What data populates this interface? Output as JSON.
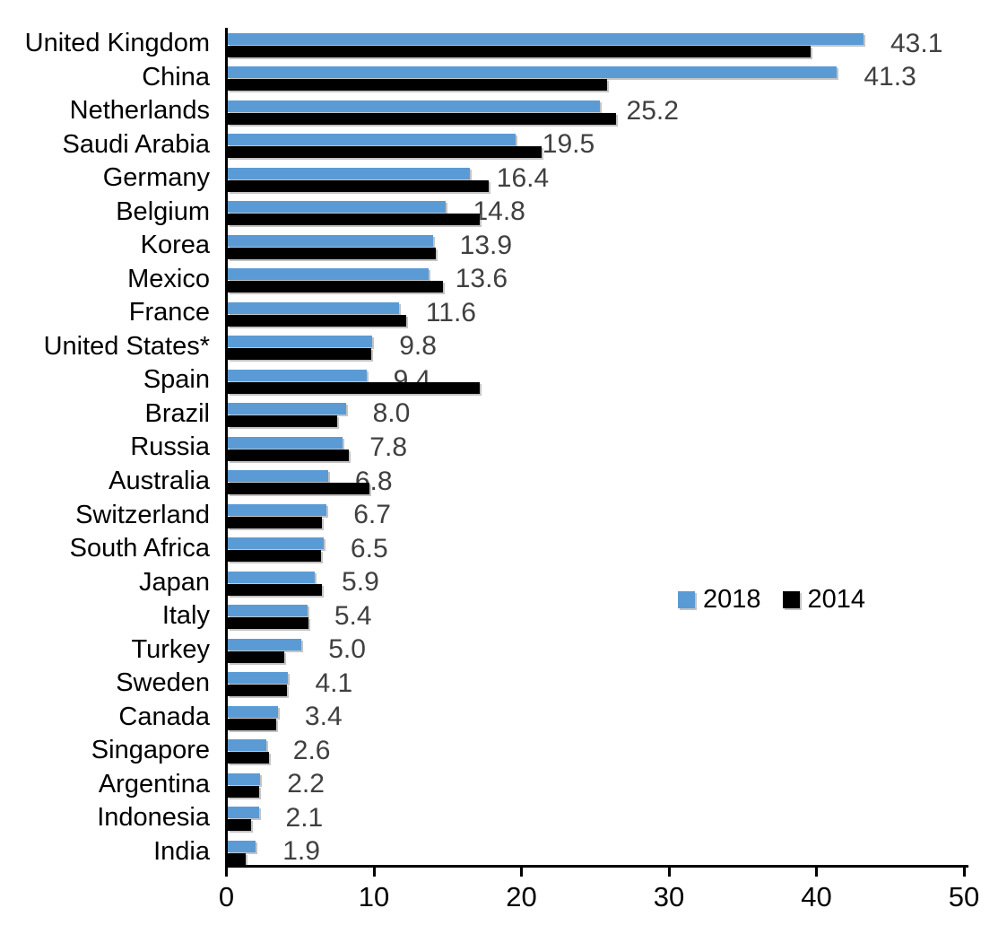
{
  "chart_data": {
    "type": "bar",
    "orientation": "horizontal",
    "title": "",
    "xlabel": "",
    "ylabel": "",
    "xlim": [
      0,
      50
    ],
    "x_ticks": [
      "0",
      "10",
      "20",
      "30",
      "40",
      "50"
    ],
    "grid": false,
    "legend_position": "center-right",
    "value_label_color": "#404040",
    "categories": [
      "United Kingdom",
      "China",
      "Netherlands",
      "Saudi Arabia",
      "Germany",
      "Belgium",
      "Korea",
      "Mexico",
      "France",
      "United States*",
      "Spain",
      "Brazil",
      "Russia",
      "Australia",
      "Switzerland",
      "South Africa",
      "Japan",
      "Italy",
      "Turkey",
      "Sweden",
      "Canada",
      "Singapore",
      "Argentina",
      "Indonesia",
      "India"
    ],
    "series": [
      {
        "name": "2018",
        "color": "#5B9BD5",
        "values": [
          43.1,
          41.3,
          25.2,
          19.5,
          16.4,
          14.8,
          13.9,
          13.6,
          11.6,
          9.8,
          9.4,
          8.0,
          7.8,
          6.8,
          6.7,
          6.5,
          5.9,
          5.4,
          5.0,
          4.1,
          3.4,
          2.6,
          2.2,
          2.1,
          1.9
        ],
        "value_labels": [
          "43.1",
          "41.3",
          "25.2",
          "19.5",
          "16.4",
          "14.8",
          "13.9",
          "13.6",
          "11.6",
          "9.8",
          "9.4",
          "8.0",
          "7.8",
          "6.8",
          "6.7",
          "6.5",
          "5.9",
          "5.4",
          "5.0",
          "4.1",
          "3.4",
          "2.6",
          "2.2",
          "2.1",
          "1.9"
        ]
      },
      {
        "name": "2014",
        "color": "#000000",
        "values": [
          39.5,
          25.7,
          26.3,
          21.3,
          17.7,
          17.1,
          14.1,
          14.6,
          12.1,
          9.7,
          17.1,
          7.4,
          8.2,
          9.6,
          6.4,
          6.3,
          6.4,
          5.5,
          3.8,
          4.0,
          3.3,
          2.8,
          2.1,
          1.6,
          1.2
        ]
      }
    ]
  },
  "legend": {
    "items": [
      {
        "label": "2018",
        "color": "#5B9BD5"
      },
      {
        "label": "2014",
        "color": "#000000"
      }
    ]
  }
}
